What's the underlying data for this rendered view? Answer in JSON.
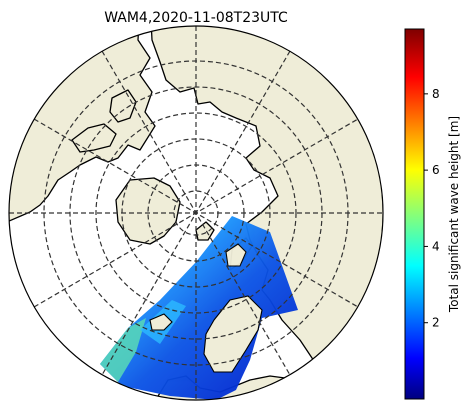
{
  "title": "WAM4,2020-11-08T23UTC",
  "map": {
    "projection": "north-polar-stereographic",
    "gridlines": "dashed",
    "land_color": "#efedd8",
    "coast_color": "#000000",
    "grid_color": "#333333"
  },
  "colorbar": {
    "label": "Total significant wave height [m]",
    "colormap": "jet",
    "range": [
      0,
      9.7
    ],
    "ticks": [
      {
        "value": 2,
        "label": "2"
      },
      {
        "value": 4,
        "label": "4"
      },
      {
        "value": 6,
        "label": "6"
      },
      {
        "value": 8,
        "label": "8"
      }
    ]
  }
}
